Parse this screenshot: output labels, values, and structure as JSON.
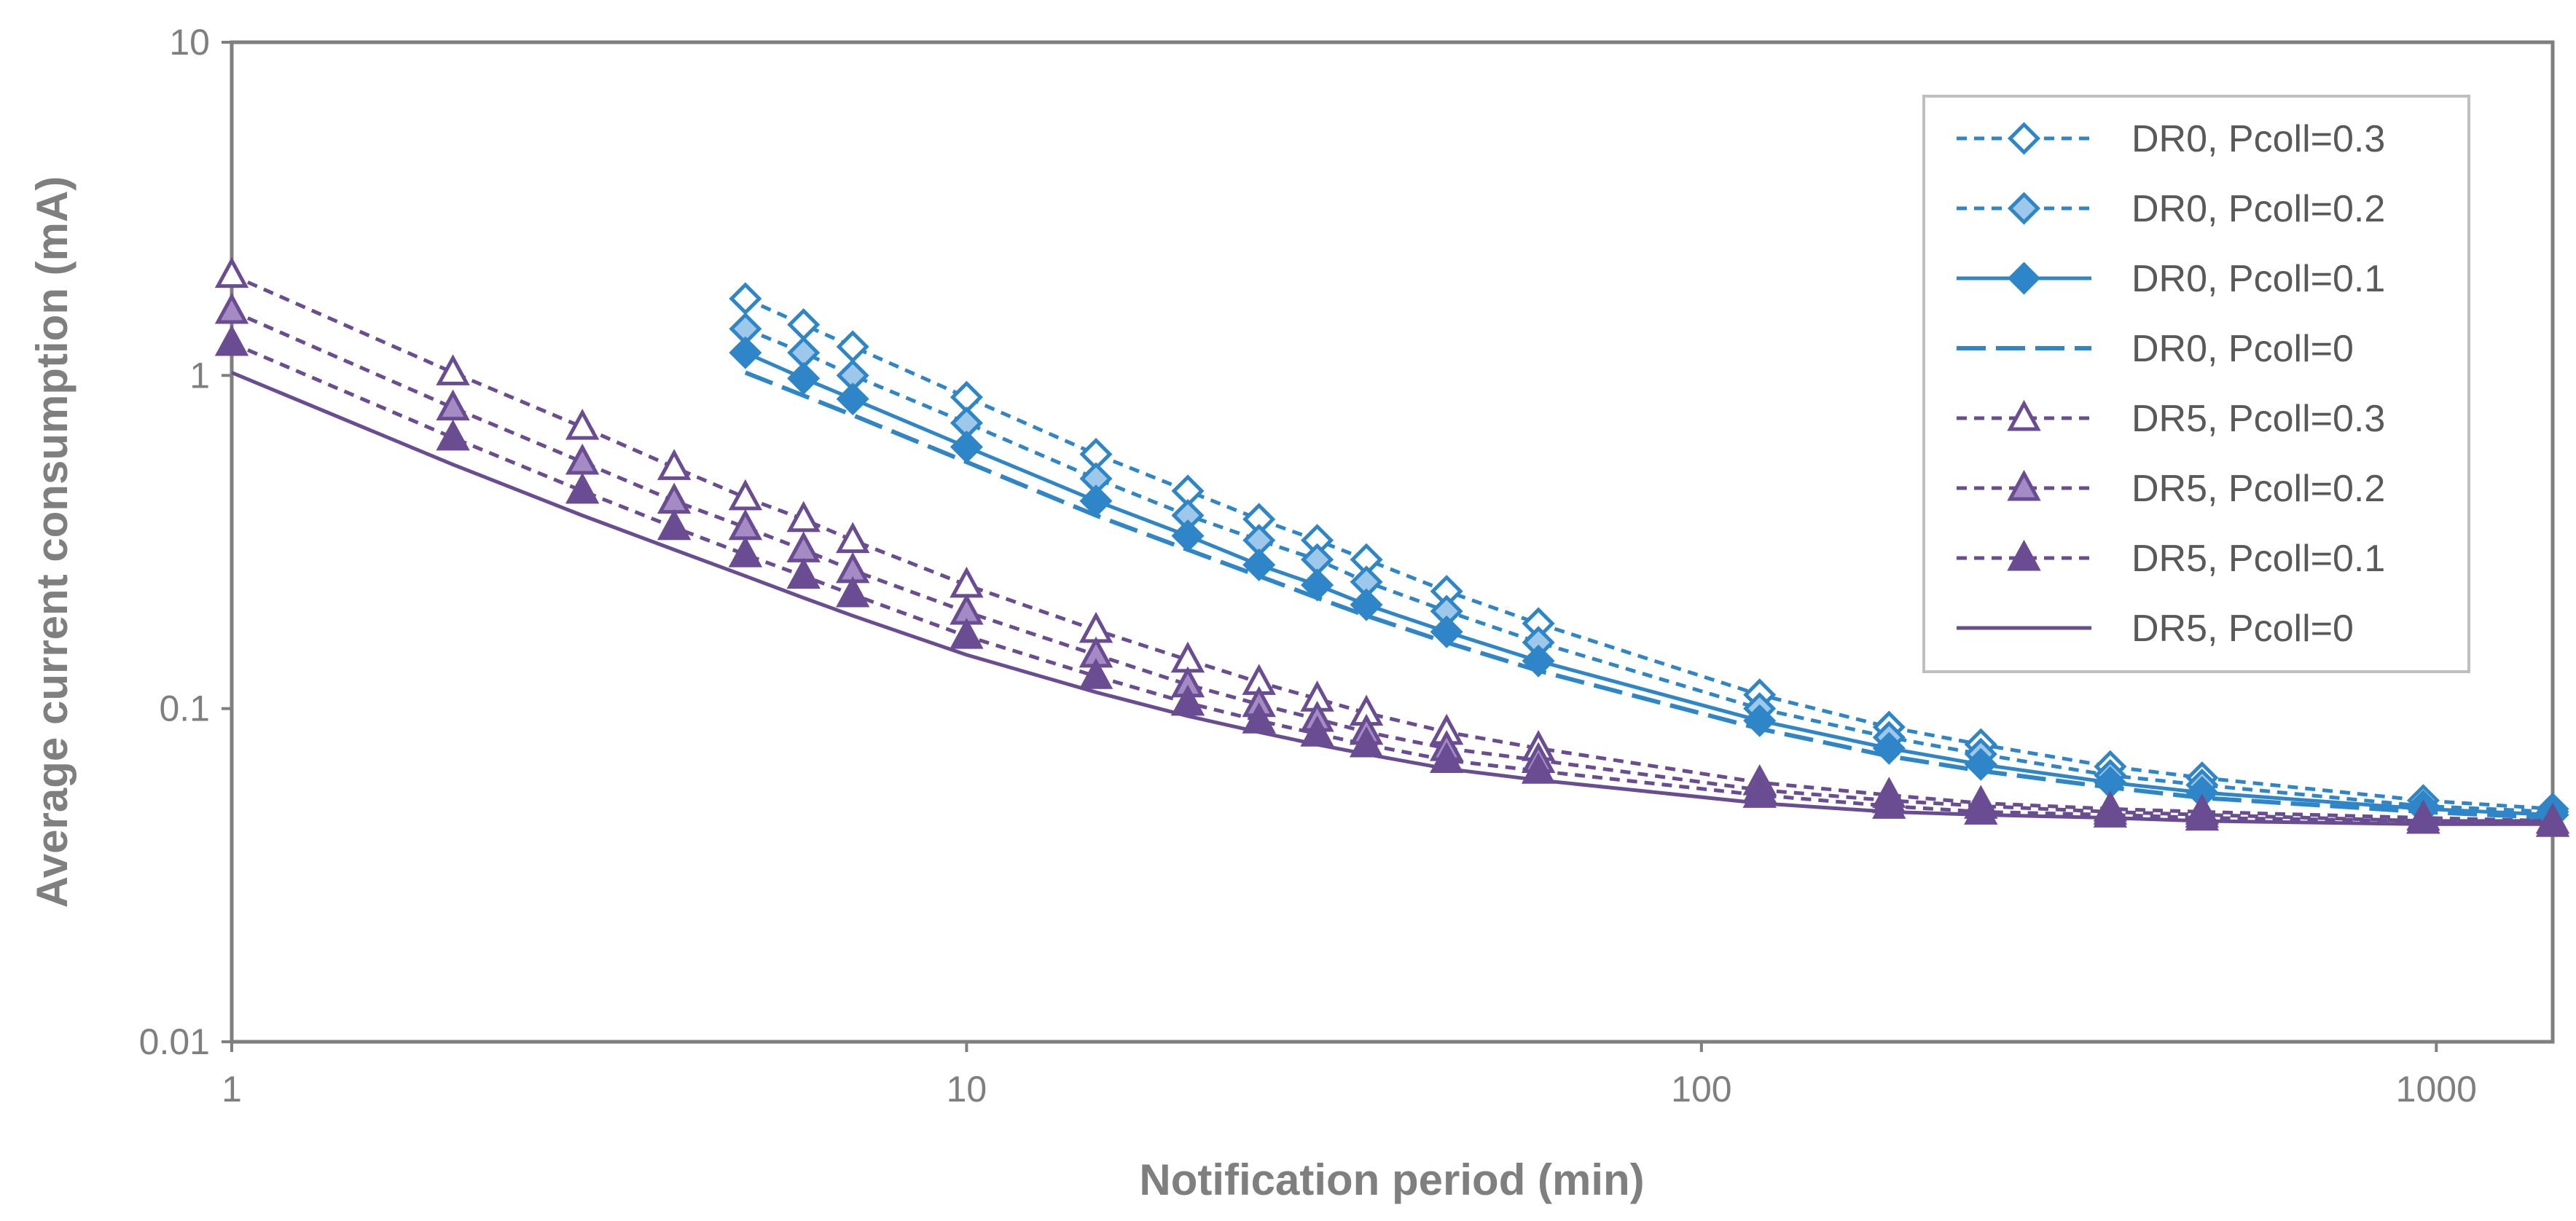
{
  "chart_data": {
    "type": "line",
    "title": "",
    "xlabel": "Notification period (min)",
    "ylabel": "Average current consumption (mA)",
    "x_scale": "log",
    "y_scale": "log",
    "xlim": [
      1,
      1440
    ],
    "ylim": [
      0.01,
      10
    ],
    "x_ticks": [
      1,
      10,
      100,
      1000
    ],
    "y_ticks": [
      0.01,
      0.1,
      1,
      10
    ],
    "x_tick_labels": [
      "1",
      "10",
      "100",
      "1000"
    ],
    "y_tick_labels": [
      "0.01",
      "0.1",
      "1",
      "10"
    ],
    "grid": false,
    "legend_position": "top-right",
    "colors": {
      "dr0": "#2e86c8",
      "dr0_light": "#9dc8ea",
      "dr5": "#6a4c93",
      "dr5_light": "#a48bc4",
      "axis": "#7f7f7f"
    },
    "series": [
      {
        "name": "DR0, Pcoll=0.3",
        "line": "short-dash",
        "marker": "diamond-open",
        "x": [
          5,
          6,
          7,
          10,
          15,
          20,
          25,
          30,
          35,
          45,
          60,
          120,
          180,
          240,
          360,
          480,
          960,
          1440
        ],
        "y": [
          1.7,
          1.42,
          1.22,
          0.86,
          0.58,
          0.45,
          0.37,
          0.32,
          0.28,
          0.225,
          0.18,
          0.11,
          0.088,
          0.078,
          0.067,
          0.062,
          0.053,
          0.05
        ]
      },
      {
        "name": "DR0, Pcoll=0.2",
        "line": "short-dash",
        "marker": "diamond-light",
        "x": [
          5,
          6,
          7,
          10,
          15,
          20,
          25,
          30,
          35,
          45,
          60,
          120,
          180,
          240,
          360,
          480,
          960,
          1440
        ],
        "y": [
          1.38,
          1.17,
          1.0,
          0.72,
          0.49,
          0.38,
          0.32,
          0.28,
          0.24,
          0.196,
          0.158,
          0.1,
          0.082,
          0.073,
          0.063,
          0.059,
          0.051,
          0.049
        ]
      },
      {
        "name": "DR0, Pcoll=0.1",
        "line": "solid",
        "marker": "diamond-filled",
        "x": [
          5,
          6,
          7,
          10,
          15,
          20,
          25,
          30,
          35,
          45,
          60,
          120,
          180,
          240,
          360,
          480,
          960,
          1440
        ],
        "y": [
          1.17,
          0.98,
          0.85,
          0.61,
          0.42,
          0.33,
          0.27,
          0.235,
          0.205,
          0.17,
          0.139,
          0.092,
          0.076,
          0.068,
          0.06,
          0.056,
          0.05,
          0.048
        ]
      },
      {
        "name": "DR0, Pcoll=0",
        "line": "long-dash",
        "marker": "none",
        "x": [
          5,
          6,
          7,
          10,
          15,
          20,
          25,
          30,
          35,
          45,
          60,
          120,
          180,
          240,
          360,
          480,
          960,
          1440
        ],
        "y": [
          1.02,
          0.87,
          0.76,
          0.55,
          0.38,
          0.3,
          0.25,
          0.215,
          0.19,
          0.158,
          0.13,
          0.087,
          0.072,
          0.065,
          0.058,
          0.054,
          0.049,
          0.047
        ]
      },
      {
        "name": "DR5, Pcoll=0.3",
        "line": "short-dash",
        "marker": "triangle-open",
        "x": [
          1,
          2,
          3,
          4,
          5,
          6,
          7,
          10,
          15,
          20,
          25,
          30,
          35,
          45,
          60,
          120,
          180,
          240,
          360,
          480,
          960,
          1440
        ],
        "y": [
          2.0,
          1.02,
          0.7,
          0.53,
          0.43,
          0.37,
          0.32,
          0.235,
          0.172,
          0.14,
          0.12,
          0.107,
          0.097,
          0.085,
          0.076,
          0.06,
          0.055,
          0.052,
          0.05,
          0.049,
          0.047,
          0.046
        ]
      },
      {
        "name": "DR5, Pcoll=0.2",
        "line": "short-dash",
        "marker": "triangle-light",
        "x": [
          1,
          2,
          3,
          4,
          5,
          6,
          7,
          10,
          15,
          20,
          25,
          30,
          35,
          45,
          60,
          120,
          180,
          240,
          360,
          480,
          960,
          1440
        ],
        "y": [
          1.56,
          0.8,
          0.55,
          0.42,
          0.35,
          0.3,
          0.26,
          0.195,
          0.145,
          0.118,
          0.103,
          0.093,
          0.085,
          0.076,
          0.07,
          0.057,
          0.053,
          0.051,
          0.049,
          0.048,
          0.046,
          0.046
        ]
      },
      {
        "name": "DR5, Pcoll=0.1",
        "line": "short-dash",
        "marker": "triangle-filled",
        "x": [
          1,
          2,
          3,
          4,
          5,
          6,
          7,
          10,
          15,
          20,
          25,
          30,
          35,
          45,
          60,
          120,
          180,
          240,
          360,
          480,
          960,
          1440
        ],
        "y": [
          1.25,
          0.65,
          0.45,
          0.35,
          0.29,
          0.25,
          0.22,
          0.165,
          0.125,
          0.104,
          0.092,
          0.084,
          0.078,
          0.07,
          0.065,
          0.055,
          0.051,
          0.049,
          0.048,
          0.047,
          0.046,
          0.045
        ]
      },
      {
        "name": "DR5, Pcoll=0",
        "line": "solid",
        "marker": "none",
        "x": [
          1,
          2,
          3,
          4,
          5,
          6,
          7,
          10,
          15,
          20,
          25,
          30,
          35,
          45,
          60,
          120,
          180,
          240,
          360,
          480,
          960,
          1440
        ],
        "y": [
          1.02,
          0.54,
          0.38,
          0.3,
          0.25,
          0.215,
          0.19,
          0.145,
          0.112,
          0.095,
          0.085,
          0.078,
          0.073,
          0.066,
          0.061,
          0.052,
          0.049,
          0.048,
          0.047,
          0.046,
          0.045,
          0.045
        ]
      }
    ]
  }
}
